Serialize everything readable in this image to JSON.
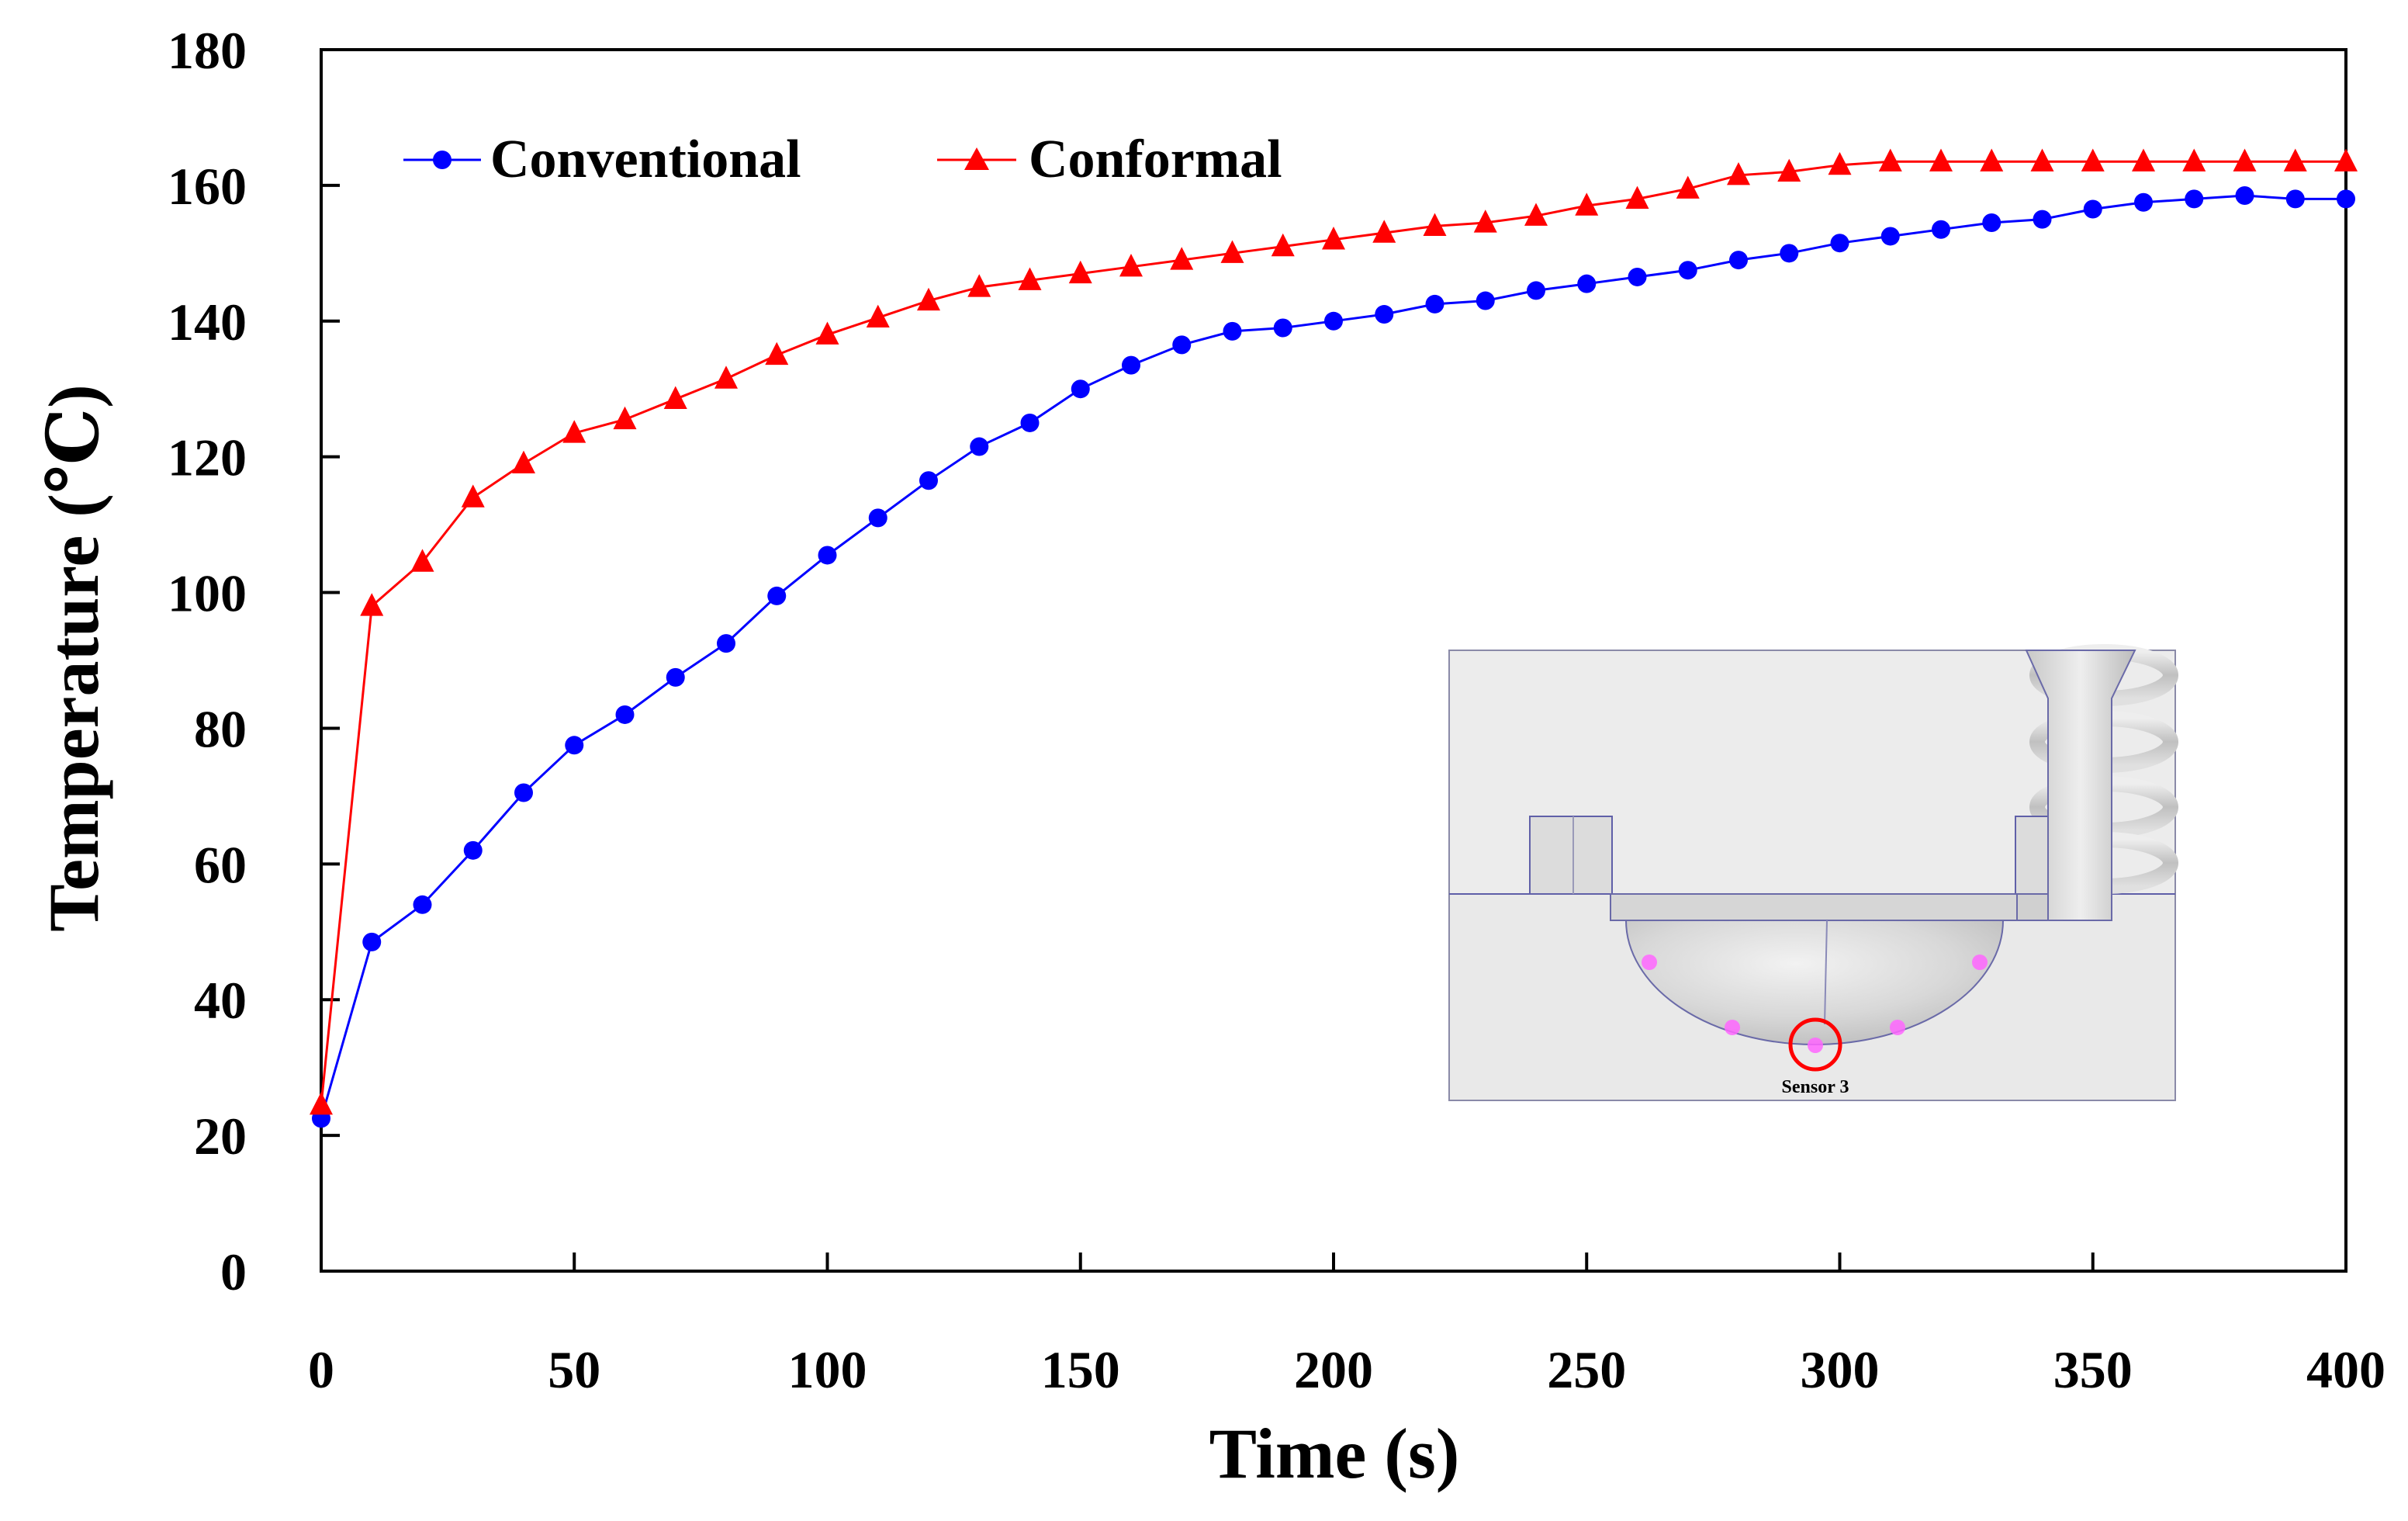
{
  "chart_data": {
    "type": "line",
    "title": "",
    "xlabel": "Time (s)",
    "ylabel": "Temperature (℃)",
    "xlim": [
      0,
      400
    ],
    "ylim": [
      0,
      180
    ],
    "xticks": [
      0,
      50,
      100,
      150,
      200,
      250,
      300,
      350,
      400
    ],
    "yticks": [
      0,
      20,
      40,
      60,
      80,
      100,
      120,
      140,
      160,
      180
    ],
    "xtick_labels": [
      "0",
      "50",
      "100",
      "150",
      "200",
      "250",
      "300",
      "350",
      "400"
    ],
    "ytick_labels": [
      "0",
      "20",
      "40",
      "60",
      "80",
      "100",
      "120",
      "140",
      "160",
      "180"
    ],
    "grid": false,
    "legend_position": "top-left",
    "x": [
      0,
      10,
      20,
      30,
      40,
      50,
      60,
      70,
      80,
      90,
      100,
      110,
      120,
      130,
      140,
      150,
      160,
      170,
      180,
      190,
      200,
      210,
      220,
      230,
      240,
      250,
      260,
      270,
      280,
      290,
      300,
      310,
      320,
      330,
      340,
      350,
      360,
      370,
      380,
      390,
      400
    ],
    "series": [
      {
        "name": "Conventional",
        "color": "#0000ff",
        "marker": "circle",
        "values": [
          22.5,
          48.5,
          54,
          62,
          70.5,
          77.5,
          82,
          87.5,
          92.5,
          99.5,
          105.5,
          111,
          116.5,
          121.5,
          125,
          130,
          133.5,
          136.5,
          138.5,
          139,
          140,
          141,
          142.5,
          143,
          144.5,
          145.5,
          146.5,
          147.5,
          149,
          150,
          151.5,
          152.5,
          153.5,
          154.5,
          155,
          156.5,
          157.5,
          158,
          158.5,
          158,
          158
        ]
      },
      {
        "name": "Conformal",
        "color": "#ff0000",
        "marker": "triangle",
        "values": [
          24.5,
          98,
          104.5,
          114,
          119,
          123.5,
          125.5,
          128.5,
          131.5,
          135,
          138,
          140.5,
          143,
          145,
          146,
          147,
          148,
          149,
          150,
          151,
          152,
          153,
          154,
          154.5,
          155.5,
          157,
          158,
          159.5,
          161.5,
          162,
          163,
          163.5,
          163.5,
          163.5,
          163.5,
          163.5,
          163.5,
          163.5,
          163.5,
          163.5,
          163.5
        ]
      }
    ],
    "inset": {
      "description_label": "Sensor 3",
      "sensor_point_color": "#ff66ff",
      "highlight_color": "#ff0000"
    }
  }
}
